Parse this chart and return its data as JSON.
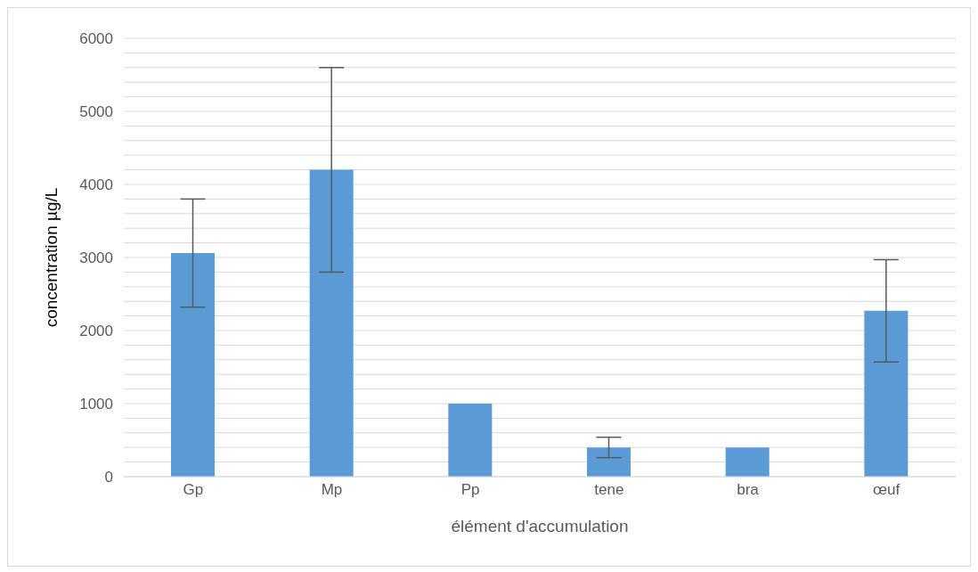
{
  "chart_data": {
    "type": "bar",
    "xlabel": "élément d'accumulation",
    "ylabel": "concentration µg/L",
    "categories": [
      "Gp",
      "Mp",
      "Pp",
      "tene",
      "bra",
      "œuf"
    ],
    "values": [
      3060,
      4200,
      1000,
      400,
      400,
      2270
    ],
    "errors": [
      740,
      1400,
      0,
      140,
      0,
      700
    ],
    "color": "#5b9bd5",
    "ylim": [
      0,
      6000
    ],
    "yticks": [
      0,
      {
        "value": 200,
        "label": null
      },
      {
        "value": 400,
        "label": null
      },
      {
        "value": 600,
        "label": null
      },
      {
        "value": 800,
        "label": null
      },
      1000,
      {
        "value": 1200,
        "label": null
      },
      {
        "value": 1400,
        "label": null
      },
      {
        "value": 1600,
        "label": null
      },
      {
        "value": 1800,
        "label": null
      },
      2000,
      {
        "value": 2200,
        "label": null
      },
      {
        "value": 2400,
        "label": null
      },
      {
        "value": 2600,
        "label": null
      },
      {
        "value": 2800,
        "label": null
      },
      3000,
      {
        "value": 3200,
        "label": null
      },
      {
        "value": 3400,
        "label": null
      },
      {
        "value": 3600,
        "label": null
      },
      {
        "value": 3800,
        "label": null
      },
      4000,
      {
        "value": 4200,
        "label": null
      },
      {
        "value": 4400,
        "label": null
      },
      {
        "value": 4600,
        "label": null
      },
      {
        "value": 4800,
        "label": null
      },
      5000,
      {
        "value": 5200,
        "label": null
      },
      {
        "value": 5400,
        "label": null
      },
      {
        "value": 5600,
        "label": null
      },
      {
        "value": 5800,
        "label": null
      },
      6000
    ],
    "grid": "y"
  }
}
